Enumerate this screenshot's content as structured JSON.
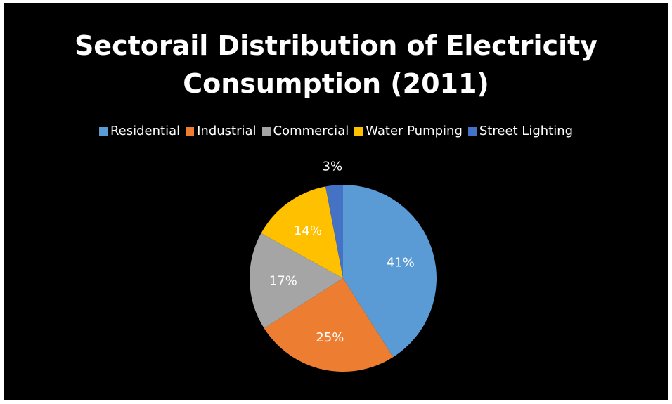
{
  "chart_data": {
    "type": "pie",
    "title": "Sectorail Distribution of Electricity Consumption (2011)",
    "categories": [
      "Residential",
      "Industrial",
      "Commercial",
      "Water Pumping",
      "Street Lighting"
    ],
    "values": [
      41,
      25,
      17,
      14,
      3
    ],
    "labels": [
      "41%",
      "25%",
      "17%",
      "14%",
      "3%"
    ],
    "colors": [
      "#5b9bd5",
      "#ed7d31",
      "#a5a5a5",
      "#ffc000",
      "#4472c4"
    ],
    "legend": "top",
    "background": "#000000"
  }
}
